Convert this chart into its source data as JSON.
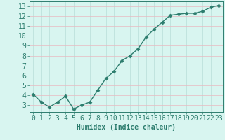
{
  "x": [
    0,
    1,
    2,
    3,
    4,
    5,
    6,
    7,
    8,
    9,
    10,
    11,
    12,
    13,
    14,
    15,
    16,
    17,
    18,
    19,
    20,
    21,
    22,
    23
  ],
  "y": [
    4.1,
    3.3,
    2.8,
    3.3,
    3.9,
    2.6,
    3.0,
    3.3,
    4.5,
    5.7,
    6.4,
    7.5,
    8.0,
    8.7,
    9.9,
    10.7,
    11.4,
    12.1,
    12.2,
    12.3,
    12.3,
    12.5,
    12.9,
    13.1
  ],
  "line_color": "#2d7d6e",
  "marker": "D",
  "marker_size": 2.5,
  "bg_color": "#d8f5f0",
  "grid_color_x": "#e8b8c0",
  "grid_color_y": "#b8ddd8",
  "xlabel": "Humidex (Indice chaleur)",
  "ylabel": "",
  "xlim": [
    -0.5,
    23.5
  ],
  "ylim": [
    2.3,
    13.5
  ],
  "xticks": [
    0,
    1,
    2,
    3,
    4,
    5,
    6,
    7,
    8,
    9,
    10,
    11,
    12,
    13,
    14,
    15,
    16,
    17,
    18,
    19,
    20,
    21,
    22,
    23
  ],
  "yticks": [
    3,
    4,
    5,
    6,
    7,
    8,
    9,
    10,
    11,
    12,
    13
  ],
  "tick_color": "#2d7d6e",
  "tick_label_color": "#2d7d6e",
  "xlabel_color": "#2d7d6e",
  "xlabel_fontsize": 7,
  "tick_fontsize": 7,
  "line_width": 1.0
}
